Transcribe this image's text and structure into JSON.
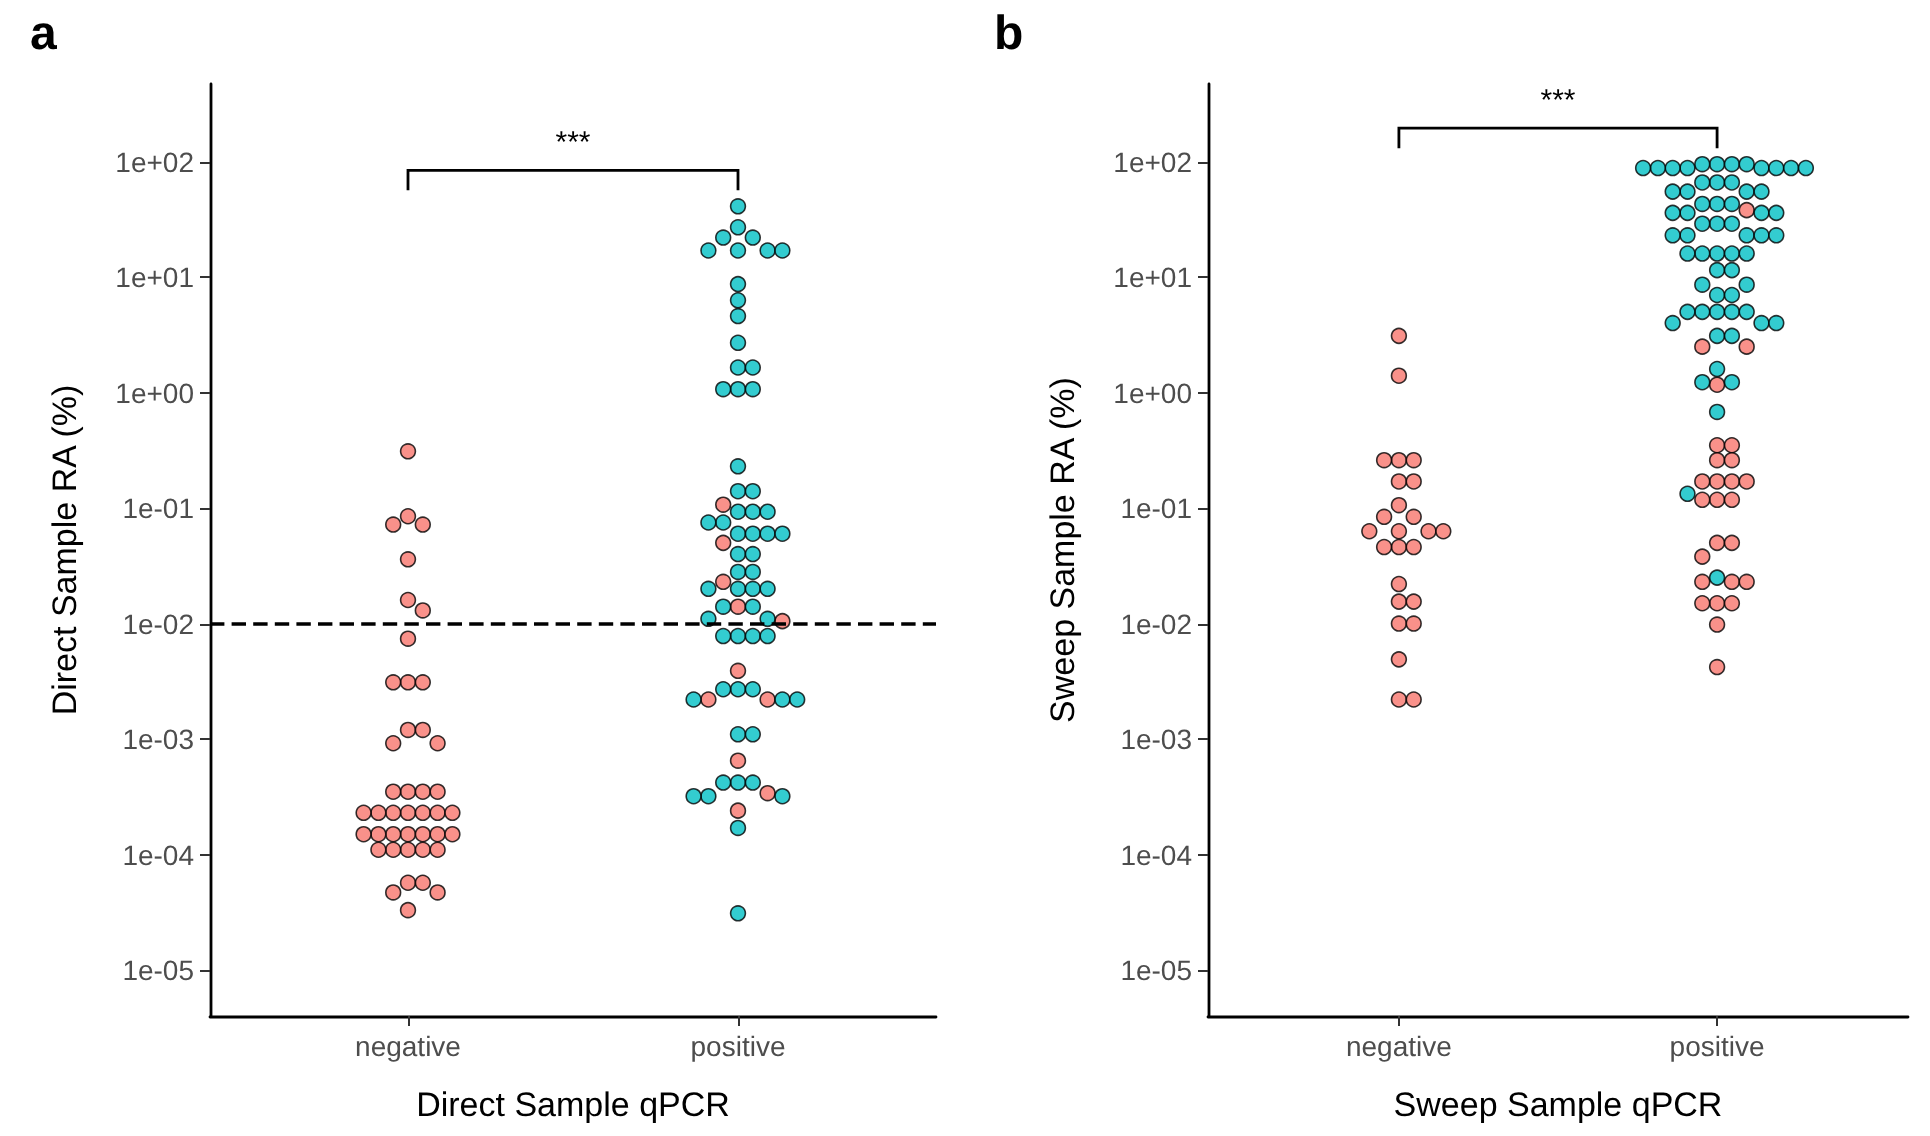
{
  "chart_data": [
    {
      "type": "scatter",
      "title": "a",
      "xlabel": "Direct Sample qPCR",
      "ylabel": "Direct Sample RA (%)",
      "log": "y",
      "grid": false,
      "marker": "circle",
      "categories": [
        "negative",
        "positive"
      ],
      "ylim": [
        4e-06,
        470
      ],
      "yticks": [
        {
          "value": 1e-05,
          "label": "1e-05"
        },
        {
          "value": 0.0001,
          "label": "1e-04"
        },
        {
          "value": 0.001,
          "label": "1e-03"
        },
        {
          "value": 0.01,
          "label": "1e-02"
        },
        {
          "value": 0.1,
          "label": "1e-01"
        },
        {
          "value": 1,
          "label": "1e+00"
        },
        {
          "value": 10,
          "label": "1e+01"
        },
        {
          "value": 100,
          "label": "1e+02"
        }
      ],
      "ref_lines": [
        {
          "axis": "y",
          "value": 0.01,
          "line_style": "dashed",
          "color": "#000000"
        }
      ],
      "annotations": [
        "***"
      ],
      "series": [
        {
          "color": "#f8766d",
          "x": [
            "negative",
            "negative",
            "negative",
            "negative",
            "negative",
            "negative",
            "negative",
            "negative",
            "negative",
            "negative",
            "negative",
            "negative",
            "negative",
            "negative",
            "negative",
            "negative",
            "negative",
            "negative",
            "negative",
            "negative",
            "negative",
            "negative",
            "negative",
            "negative",
            "negative",
            "negative",
            "negative",
            "negative",
            "negative",
            "negative",
            "negative",
            "negative",
            "negative",
            "negative",
            "negative",
            "negative",
            "negative",
            "negative",
            "negative",
            "negative",
            "negative",
            "negative",
            "negative",
            "positive",
            "positive",
            "positive",
            "positive",
            "positive",
            "positive",
            "positive",
            "positive",
            "positive",
            "positive",
            "positive"
          ],
          "values": [
            0.31,
            0.085,
            0.072,
            0.072,
            0.036,
            0.016,
            0.013,
            0.0074,
            0.0031,
            0.0031,
            0.0031,
            0.0012,
            0.0012,
            0.00092,
            0.00092,
            0.00035,
            0.00035,
            0.00035,
            0.00035,
            0.00023,
            0.00023,
            0.00023,
            0.00023,
            0.00023,
            0.00023,
            0.00023,
            0.00015,
            0.00015,
            0.00015,
            0.00015,
            0.00015,
            0.00015,
            0.00015,
            0.00011,
            0.00011,
            0.00011,
            0.00011,
            0.00011,
            5.7e-05,
            5.7e-05,
            4.7e-05,
            4.7e-05,
            3.3e-05,
            0.107,
            0.05,
            0.023,
            0.014,
            0.0105,
            0.0039,
            0.0022,
            0.0022,
            0.00065,
            0.00034,
            0.00024
          ]
        },
        {
          "color": "#00bfc4",
          "x": [
            "positive",
            "positive",
            "positive",
            "positive",
            "positive",
            "positive",
            "positive",
            "positive",
            "positive",
            "positive",
            "positive",
            "positive",
            "positive",
            "positive",
            "positive",
            "positive",
            "positive",
            "positive",
            "positive",
            "positive",
            "positive",
            "positive",
            "positive",
            "positive",
            "positive",
            "positive",
            "positive",
            "positive",
            "positive",
            "positive",
            "positive",
            "positive",
            "positive",
            "positive",
            "positive",
            "positive",
            "positive",
            "positive",
            "positive",
            "positive",
            "positive",
            "positive",
            "positive",
            "positive",
            "positive",
            "positive",
            "positive",
            "positive",
            "positive",
            "positive",
            "positive",
            "positive",
            "positive",
            "positive",
            "positive",
            "positive",
            "positive",
            "positive",
            "positive",
            "positive",
            "positive"
          ],
          "values": [
            41,
            27,
            22,
            22,
            17,
            17,
            17,
            17,
            8.7,
            6.3,
            4.6,
            2.7,
            1.65,
            1.65,
            1.07,
            1.07,
            1.07,
            0.23,
            0.14,
            0.14,
            0.093,
            0.093,
            0.093,
            0.075,
            0.075,
            0.06,
            0.06,
            0.06,
            0.06,
            0.04,
            0.04,
            0.028,
            0.028,
            0.02,
            0.02,
            0.02,
            0.02,
            0.014,
            0.014,
            0.011,
            0.011,
            0.0078,
            0.0078,
            0.0078,
            0.0078,
            0.0027,
            0.0027,
            0.0027,
            0.0022,
            0.0022,
            0.0022,
            0.0011,
            0.0011,
            0.00042,
            0.00042,
            0.00042,
            0.00032,
            0.00032,
            0.00032,
            0.00017,
            3.1e-05
          ]
        }
      ]
    },
    {
      "type": "scatter",
      "title": "b",
      "xlabel": "Sweep Sample qPCR",
      "ylabel": "Sweep Sample RA (%)",
      "log": "y",
      "grid": false,
      "marker": "circle",
      "categories": [
        "negative",
        "positive"
      ],
      "ylim": [
        4e-06,
        470
      ],
      "yticks": [
        {
          "value": 1e-05,
          "label": "1e-05"
        },
        {
          "value": 0.0001,
          "label": "1e-04"
        },
        {
          "value": 0.001,
          "label": "1e-03"
        },
        {
          "value": 0.01,
          "label": "1e-02"
        },
        {
          "value": 0.1,
          "label": "1e-01"
        },
        {
          "value": 1,
          "label": "1e+00"
        },
        {
          "value": 10,
          "label": "1e+01"
        },
        {
          "value": 100,
          "label": "1e+02"
        }
      ],
      "annotations": [
        "***"
      ],
      "series": [
        {
          "color": "#f8766d",
          "x": [
            "negative",
            "negative",
            "negative",
            "negative",
            "negative",
            "negative",
            "negative",
            "negative",
            "negative",
            "negative",
            "negative",
            "negative",
            "negative",
            "negative",
            "negative",
            "negative",
            "negative",
            "negative",
            "negative",
            "negative",
            "negative",
            "negative",
            "negative",
            "negative",
            "negative",
            "positive",
            "positive",
            "positive",
            "positive",
            "positive",
            "positive",
            "positive",
            "positive",
            "positive",
            "positive",
            "positive",
            "positive",
            "positive",
            "positive",
            "positive",
            "positive",
            "positive",
            "positive",
            "positive",
            "positive",
            "positive",
            "positive",
            "positive",
            "positive",
            "positive",
            "positive"
          ],
          "values": [
            3.1,
            1.4,
            0.26,
            0.26,
            0.26,
            0.17,
            0.17,
            0.106,
            0.084,
            0.084,
            0.063,
            0.063,
            0.063,
            0.063,
            0.046,
            0.046,
            0.046,
            0.022,
            0.0155,
            0.0155,
            0.01,
            0.01,
            0.0049,
            0.0022,
            0.0022,
            38,
            2.5,
            2.5,
            1.17,
            0.35,
            0.35,
            0.26,
            0.26,
            0.17,
            0.17,
            0.17,
            0.17,
            0.118,
            0.118,
            0.118,
            0.05,
            0.05,
            0.038,
            0.023,
            0.023,
            0.023,
            0.015,
            0.015,
            0.015,
            0.0098,
            0.0042
          ]
        },
        {
          "color": "#00bfc4",
          "x": [
            "positive",
            "positive",
            "positive",
            "positive",
            "positive",
            "positive",
            "positive",
            "positive",
            "positive",
            "positive",
            "positive",
            "positive",
            "positive",
            "positive",
            "positive",
            "positive",
            "positive",
            "positive",
            "positive",
            "positive",
            "positive",
            "positive",
            "positive",
            "positive",
            "positive",
            "positive",
            "positive",
            "positive",
            "positive",
            "positive",
            "positive",
            "positive",
            "positive",
            "positive",
            "positive",
            "positive",
            "positive",
            "positive",
            "positive",
            "positive",
            "positive",
            "positive",
            "positive",
            "positive",
            "positive",
            "positive",
            "positive",
            "positive",
            "positive",
            "positive",
            "positive",
            "positive",
            "positive",
            "positive",
            "positive",
            "positive",
            "positive",
            "positive",
            "positive",
            "positive",
            "positive"
          ],
          "values": [
            95,
            95,
            95,
            95,
            88,
            88,
            88,
            88,
            88,
            88,
            88,
            88,
            66,
            66,
            66,
            55,
            55,
            55,
            55,
            43,
            43,
            43,
            36,
            36,
            36,
            36,
            29,
            29,
            29,
            23,
            23,
            23,
            23,
            23,
            16,
            16,
            16,
            16,
            16,
            11.5,
            11.5,
            8.6,
            8.6,
            7,
            7,
            5,
            5,
            5,
            5,
            5,
            4,
            4,
            4,
            3.1,
            3.1,
            1.6,
            1.23,
            1.23,
            0.68,
            0.133,
            0.025
          ]
        }
      ]
    }
  ]
}
